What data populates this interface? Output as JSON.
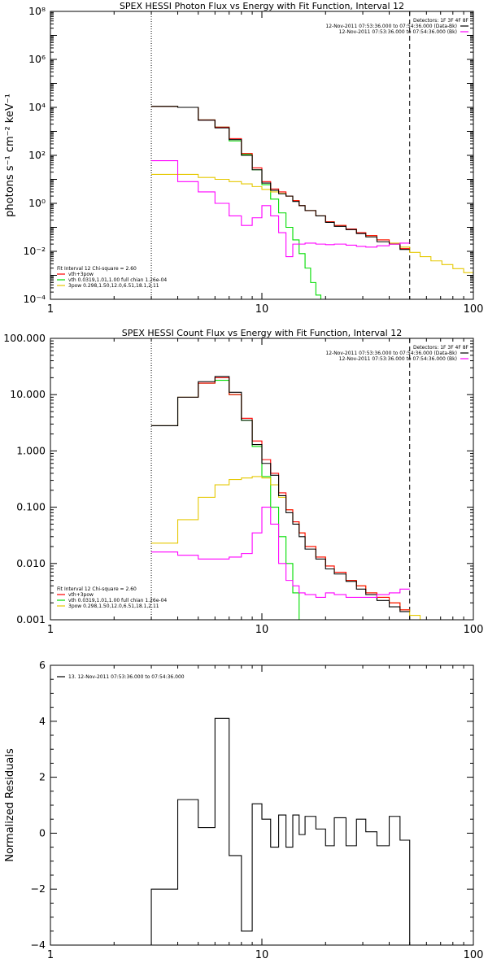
{
  "chart_data": [
    {
      "type": "line",
      "title": "SPEX HESSI Photon Flux vs Energy with Fit Function, Interval 12",
      "xlabel": "",
      "ylabel": "photons s⁻¹ cm⁻² keV⁻¹",
      "xscale": "log",
      "yscale": "log",
      "xlim": [
        1,
        100
      ],
      "ylim": [
        0.0001,
        100000000
      ],
      "x_ticks": [
        {
          "v": 1,
          "label": "1"
        },
        {
          "v": 10,
          "label": "10"
        },
        {
          "v": 100,
          "label": "100"
        }
      ],
      "y_ticks": [
        {
          "v": 0.0001,
          "label": "10⁻⁴"
        },
        {
          "v": 0.01,
          "label": "10⁻²"
        },
        {
          "v": 1,
          "label": "10⁰"
        },
        {
          "v": 100,
          "label": "10²"
        },
        {
          "v": 10000,
          "label": "10⁴"
        },
        {
          "v": 1000000,
          "label": "10⁶"
        },
        {
          "v": 100000000,
          "label": "10⁸"
        }
      ],
      "vlines": [
        {
          "x": 3,
          "style": "dotted"
        },
        {
          "x": 50,
          "style": "dashed"
        }
      ],
      "legend_right": {
        "header": "Detectors: 1F 3F 4F 8F",
        "entries": [
          {
            "label": "12-Nov-2011 07:53:36.000 to 07:54:36.000 (Data-Bk)",
            "color": "#000000"
          },
          {
            "label": "12-Nov-2011 07:53:36.000 to 07:54:36.000 (Bk)",
            "color": "#ff00ff"
          }
        ]
      },
      "legend_left": {
        "header": "Fit Interval 12   Chi-square = 2.60",
        "entries": [
          {
            "label": "vth+3pow",
            "color": "#ff0000"
          },
          {
            "label": "vth 0.0319,1.01,1.00  full chian 1.26e-04",
            "color": "#00dd00"
          },
          {
            "label": "3pow 0.298,1.50,12.0,6.51,18.1,2.11",
            "color": "#e5c800"
          }
        ]
      },
      "series": [
        {
          "color": "#00dd00",
          "edges": [
            3,
            4,
            5,
            6,
            7,
            8,
            9,
            10,
            11,
            12,
            13,
            14,
            15,
            16,
            17,
            18,
            19,
            20,
            21
          ],
          "values": [
            11000,
            10000,
            3000,
            1500,
            400,
            110,
            25,
            6,
            1.5,
            0.4,
            0.1,
            0.03,
            0.008,
            0.002,
            0.0005,
            0.00015,
            0.0001,
            0.0001
          ]
        },
        {
          "color": "#e5c800",
          "edges": [
            3,
            4,
            5,
            6,
            7,
            8,
            9,
            10,
            11,
            12,
            13,
            14,
            15,
            16,
            18,
            20,
            22,
            25,
            28,
            31,
            35,
            40,
            45,
            50,
            56,
            63,
            71,
            80,
            90,
            100
          ],
          "values": [
            16,
            16,
            12,
            10,
            8,
            6.5,
            5,
            3.8,
            3,
            2.6,
            2,
            1.3,
            0.8,
            0.5,
            0.3,
            0.17,
            0.12,
            0.085,
            0.06,
            0.045,
            0.03,
            0.022,
            0.015,
            0.009,
            0.006,
            0.004,
            0.0028,
            0.0019,
            0.0013
          ]
        },
        {
          "color": "#ff0000",
          "edges": [
            3,
            4,
            5,
            6,
            7,
            8,
            9,
            10,
            11,
            12,
            13,
            14,
            15,
            16,
            18,
            20,
            22,
            25,
            28,
            31,
            35,
            40,
            45,
            50
          ],
          "values": [
            11000,
            10000,
            3000,
            1500,
            500,
            120,
            30,
            8,
            4,
            3,
            2,
            1.3,
            0.8,
            0.5,
            0.3,
            0.17,
            0.12,
            0.085,
            0.06,
            0.045,
            0.03,
            0.02,
            0.013
          ]
        },
        {
          "color": "#000000",
          "edges": [
            3,
            4,
            5,
            6,
            7,
            8,
            9,
            10,
            11,
            12,
            13,
            14,
            15,
            16,
            18,
            20,
            22,
            25,
            28,
            31,
            35,
            40,
            45,
            50
          ],
          "values": [
            11000,
            10000,
            2900,
            1400,
            450,
            100,
            25,
            7,
            3.5,
            2.5,
            2,
            1.2,
            0.8,
            0.5,
            0.3,
            0.16,
            0.11,
            0.08,
            0.055,
            0.04,
            0.025,
            0.02,
            0.012
          ]
        },
        {
          "color": "#ff00ff",
          "edges": [
            3,
            4,
            5,
            6,
            7,
            8,
            9,
            10,
            11,
            12,
            13,
            14,
            15,
            16,
            18,
            20,
            22,
            25,
            28,
            31,
            35,
            40,
            45,
            50
          ],
          "values": [
            60,
            8,
            3,
            1,
            0.3,
            0.12,
            0.25,
            0.8,
            0.3,
            0.06,
            0.006,
            0.02,
            0.02,
            0.022,
            0.02,
            0.019,
            0.02,
            0.018,
            0.016,
            0.015,
            0.017,
            0.02,
            0.022
          ]
        }
      ]
    },
    {
      "type": "line",
      "title": "SPEX HESSI Count Flux vs Energy with Fit Function, Interval 12",
      "xlabel": "",
      "ylabel": "",
      "xscale": "log",
      "yscale": "log",
      "xlim": [
        1,
        100
      ],
      "ylim": [
        0.001,
        100
      ],
      "x_ticks": [
        {
          "v": 1,
          "label": "1"
        },
        {
          "v": 10,
          "label": "10"
        },
        {
          "v": 100,
          "label": "100"
        }
      ],
      "y_ticks": [
        {
          "v": 0.001,
          "label": "0.001"
        },
        {
          "v": 0.01,
          "label": "0.010"
        },
        {
          "v": 0.1,
          "label": "0.100"
        },
        {
          "v": 1,
          "label": "1.000"
        },
        {
          "v": 10,
          "label": "10.000"
        },
        {
          "v": 100,
          "label": "100.000"
        }
      ],
      "vlines": [
        {
          "x": 3,
          "style": "dotted"
        },
        {
          "x": 50,
          "style": "dashed"
        }
      ],
      "legend_right": {
        "header": "Detectors: 1F 3F 4F 8F",
        "entries": [
          {
            "label": "12-Nov-2011 07:53:36.000 to 07:54:36.000 (Data-Bk)",
            "color": "#000000"
          },
          {
            "label": "12-Nov-2011 07:53:36.000 to 07:54:36.000 (Bk)",
            "color": "#ff00ff"
          }
        ]
      },
      "legend_left": {
        "header": "Fit Interval 12   Chi-square = 2.60",
        "entries": [
          {
            "label": "vth+3pow",
            "color": "#ff0000"
          },
          {
            "label": "vth 0.0319,1.01,1.00  full chian 1.26e-04",
            "color": "#00dd00"
          },
          {
            "label": "3pow 0.298,1.50,12.0,6.51,18.1,2.11",
            "color": "#e5c800"
          }
        ]
      },
      "series": [
        {
          "color": "#00dd00",
          "edges": [
            3,
            4,
            5,
            6,
            7,
            8,
            9,
            10,
            11,
            12,
            13,
            14,
            15,
            16,
            17
          ],
          "values": [
            2.8,
            9,
            16,
            18,
            10,
            3.5,
            1.2,
            0.35,
            0.1,
            0.03,
            0.01,
            0.003,
            0.001,
            0.001
          ]
        },
        {
          "color": "#e5c800",
          "edges": [
            3,
            4,
            5,
            6,
            7,
            8,
            9,
            10,
            11,
            12,
            13,
            14,
            15,
            16,
            18,
            20,
            22,
            25,
            28,
            31,
            35,
            40,
            45,
            50,
            56,
            63,
            71
          ],
          "values": [
            0.023,
            0.06,
            0.15,
            0.25,
            0.31,
            0.33,
            0.35,
            0.33,
            0.25,
            0.15,
            0.09,
            0.055,
            0.035,
            0.02,
            0.013,
            0.009,
            0.007,
            0.005,
            0.004,
            0.003,
            0.0025,
            0.002,
            0.0015,
            0.0012,
            0.001,
            0.001
          ]
        },
        {
          "color": "#ff0000",
          "edges": [
            3,
            4,
            5,
            6,
            7,
            8,
            9,
            10,
            11,
            12,
            13,
            14,
            15,
            16,
            18,
            20,
            22,
            25,
            28,
            31,
            35,
            40,
            45,
            50
          ],
          "values": [
            2.8,
            9,
            16,
            20,
            10,
            3.8,
            1.5,
            0.7,
            0.4,
            0.18,
            0.09,
            0.055,
            0.035,
            0.02,
            0.013,
            0.009,
            0.007,
            0.005,
            0.004,
            0.003,
            0.0025,
            0.002,
            0.0015
          ]
        },
        {
          "color": "#000000",
          "edges": [
            3,
            4,
            5,
            6,
            7,
            8,
            9,
            10,
            11,
            12,
            13,
            14,
            15,
            16,
            18,
            20,
            22,
            25,
            28,
            31,
            35,
            40,
            45,
            50
          ],
          "values": [
            2.8,
            9,
            17,
            21,
            11,
            3.5,
            1.3,
            0.6,
            0.37,
            0.16,
            0.08,
            0.05,
            0.03,
            0.018,
            0.012,
            0.008,
            0.0065,
            0.0048,
            0.0035,
            0.0028,
            0.0022,
            0.0017,
            0.0014
          ]
        },
        {
          "color": "#ff00ff",
          "edges": [
            3,
            4,
            5,
            6,
            7,
            8,
            9,
            10,
            11,
            12,
            13,
            14,
            15,
            16,
            18,
            20,
            22,
            25,
            28,
            31,
            35,
            40,
            45,
            50
          ],
          "values": [
            0.016,
            0.014,
            0.012,
            0.012,
            0.013,
            0.015,
            0.035,
            0.1,
            0.05,
            0.01,
            0.005,
            0.004,
            0.003,
            0.0028,
            0.0025,
            0.003,
            0.0028,
            0.0025,
            0.0025,
            0.0025,
            0.0028,
            0.003,
            0.0035
          ]
        }
      ]
    },
    {
      "type": "line",
      "title": "",
      "xlabel": "",
      "ylabel": "Normalized Residuals",
      "xscale": "log",
      "yscale": "linear",
      "xlim": [
        1,
        100
      ],
      "ylim": [
        -4,
        6
      ],
      "x_ticks": [
        {
          "v": 1,
          "label": "1"
        },
        {
          "v": 10,
          "label": "10"
        },
        {
          "v": 100,
          "label": "100"
        }
      ],
      "y_ticks": [
        {
          "v": -4,
          "label": "−4"
        },
        {
          "v": -2,
          "label": "−2"
        },
        {
          "v": 0,
          "label": "0"
        },
        {
          "v": 2,
          "label": "2"
        },
        {
          "v": 4,
          "label": "4"
        },
        {
          "v": 6,
          "label": "6"
        }
      ],
      "vlines": [],
      "legend_right": null,
      "legend_left": {
        "header": "",
        "entries": [
          {
            "label": "13. 12-Nov-2011 07:53:36.000 to 07:54:36.000",
            "color": "#000000"
          }
        ]
      },
      "series": [
        {
          "color": "#000000",
          "edges": [
            3,
            4,
            5,
            6,
            7,
            8,
            9,
            10,
            11,
            12,
            13,
            14,
            15,
            16,
            18,
            20,
            22,
            25,
            28,
            31,
            35,
            40,
            45,
            50
          ],
          "values": [
            -2,
            1.2,
            0.2,
            4.1,
            -0.8,
            -3.5,
            1.05,
            0.5,
            -0.5,
            0.65,
            -0.5,
            0.65,
            -0.05,
            0.6,
            0.15,
            -0.45,
            0.55,
            -0.45,
            0.5,
            0.05,
            -0.45,
            0.6,
            -0.25
          ],
          "drop_to_bottom_at_ends": true
        }
      ]
    }
  ]
}
